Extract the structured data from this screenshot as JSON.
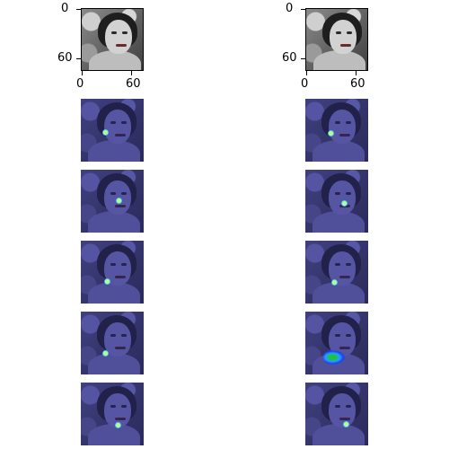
{
  "axes": {
    "ytick_top": "0",
    "ytick_bottom": "60",
    "xtick_left": "0",
    "xtick_right": "60"
  },
  "colors": {
    "overlay": "#2a2ab4",
    "hotspot": "#22a0ff"
  }
}
